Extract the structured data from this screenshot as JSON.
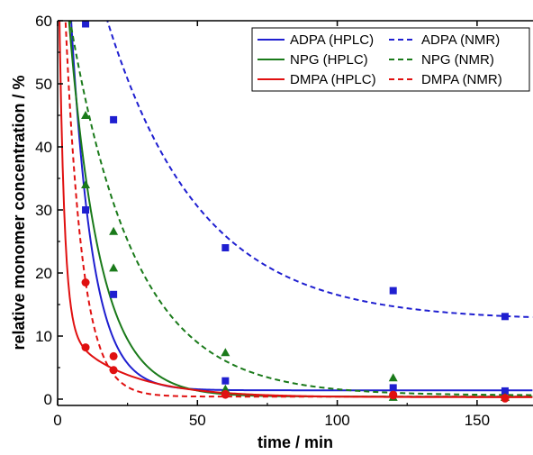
{
  "chart_data": {
    "type": "scatter",
    "xlabel": "time  /  min",
    "ylabel": "relative monomer concentration  /  %",
    "xlim": [
      0,
      170
    ],
    "ylim": [
      -1,
      60
    ],
    "xticks": [
      0,
      50,
      100,
      150
    ],
    "yticks": [
      0,
      10,
      20,
      30,
      40,
      50,
      60
    ],
    "legend_position": "top-right",
    "grid": false,
    "series": [
      {
        "name": "ADPA (HPLC)",
        "color": "#1f1fd0",
        "line_style": "solid",
        "marker": "square",
        "points": [
          [
            10,
            30.0
          ],
          [
            20,
            16.6
          ],
          [
            60,
            2.9
          ],
          [
            120,
            1.8
          ],
          [
            160,
            1.3
          ]
        ],
        "fit": {
          "a": 1.4,
          "b": 110,
          "k": 0.13
        }
      },
      {
        "name": "ADPA (NMR)",
        "color": "#1f1fd0",
        "line_style": "dashed",
        "marker": "square",
        "points": [
          [
            10,
            59.5
          ],
          [
            20,
            44.3
          ],
          [
            60,
            24.0
          ],
          [
            120,
            17.2
          ],
          [
            160,
            13.1
          ]
        ],
        "fit": {
          "a": 12.5,
          "b": 81,
          "k": 0.03
        }
      },
      {
        "name": "NPG (HPLC)",
        "color": "#1a7a1a",
        "line_style": "solid",
        "marker": "triangle",
        "points": [
          [
            10,
            34.0
          ],
          [
            20,
            20.8
          ],
          [
            60,
            1.6
          ],
          [
            120,
            0.3
          ],
          [
            160,
            0.3
          ]
        ],
        "fit": {
          "a": 0.4,
          "b": 86,
          "k": 0.09
        }
      },
      {
        "name": "NPG (NMR)",
        "color": "#1a7a1a",
        "line_style": "dashed",
        "marker": "triangle",
        "points": [
          [
            10,
            45.0
          ],
          [
            20,
            26.6
          ],
          [
            60,
            7.4
          ],
          [
            120,
            3.4
          ],
          [
            160,
            0.3
          ]
        ],
        "fit": {
          "a": 0.6,
          "b": 72,
          "k": 0.043
        }
      },
      {
        "name": "DMPA (HPLC)",
        "color": "#e01010",
        "line_style": "solid",
        "marker": "circle",
        "points": [
          [
            10,
            8.2
          ],
          [
            20,
            4.6
          ],
          [
            60,
            0.7
          ],
          [
            120,
            0.6
          ],
          [
            160,
            0.1
          ]
        ],
        "fit": {
          "a": 0.3,
          "b": 70,
          "k": 0.55,
          "b2": 11.5,
          "k2": 0.047
        }
      },
      {
        "name": "DMPA (NMR)",
        "color": "#e01010",
        "line_style": "dashed",
        "marker": "circle",
        "points": [
          [
            10,
            18.5
          ],
          [
            20,
            6.8
          ],
          [
            60,
            0.8
          ],
          [
            120,
            0.7
          ],
          [
            160,
            0.2
          ]
        ],
        "fit": {
          "a": 0.4,
          "b": 95,
          "k": 0.165
        }
      }
    ]
  }
}
